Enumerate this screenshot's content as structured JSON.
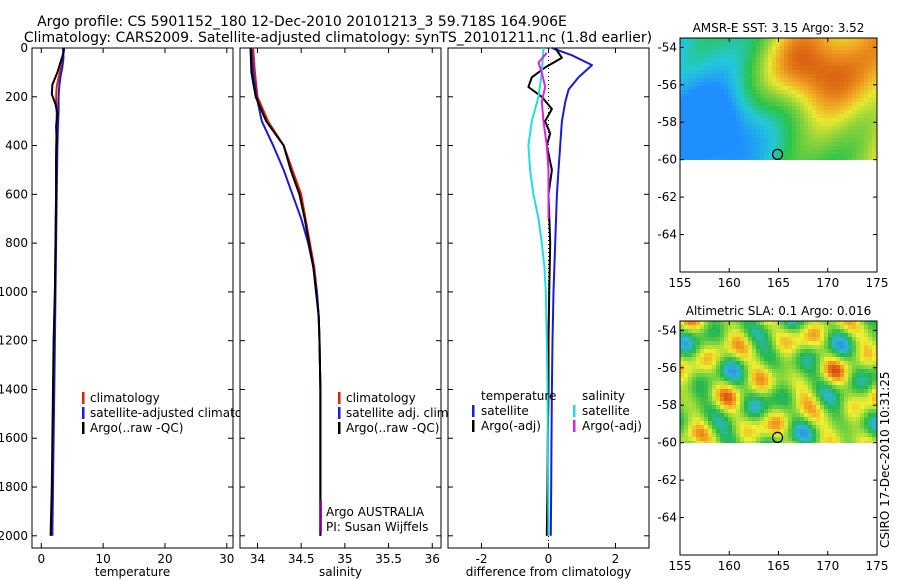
{
  "header": {
    "line1": "Argo profile: CS 5901152_180 12-Dec-2010 20101213_3 59.718S 164.906E",
    "line2": "Climatology: CARS2009. Satellite-adjusted climatology: synTS_20101211.nc (1.8d earlier)"
  },
  "colors": {
    "climatology": "#dd2200",
    "satellite": "#1a1ad8",
    "argo": "#000000",
    "sat_salinity": "#22dddd",
    "argo_adj": "#dd22dd",
    "owner": "#800080"
  },
  "depth_axis": {
    "ticks": [
      "0",
      "200",
      "400",
      "600",
      "800",
      "1000",
      "1200",
      "1400",
      "1600",
      "1800",
      "2000"
    ],
    "ylim": [
      2050,
      0
    ]
  },
  "chart_data": [
    {
      "type": "line",
      "xlabel": "temperature",
      "xlim": [
        -1.5,
        31
      ],
      "xticks": [
        0,
        10,
        20,
        30
      ],
      "xtick_labels": [
        "0",
        "10",
        "20",
        "30"
      ],
      "legend": [
        "climatology",
        "satellite-adjusted climatology",
        "Argo(..raw -QC)"
      ],
      "series": [
        {
          "name": "climatology",
          "color": "climatology",
          "points": [
            [
              3.6,
              0
            ],
            [
              3.5,
              40
            ],
            [
              3.2,
              80
            ],
            [
              2.8,
              120
            ],
            [
              2.5,
              160
            ],
            [
              2.4,
              200
            ],
            [
              2.5,
              260
            ],
            [
              2.5,
              320
            ],
            [
              2.4,
              400
            ],
            [
              2.4,
              600
            ],
            [
              2.3,
              800
            ],
            [
              2.2,
              1000
            ],
            [
              2.1,
              1200
            ],
            [
              2.0,
              1400
            ],
            [
              1.9,
              1600
            ],
            [
              1.8,
              1800
            ],
            [
              1.7,
              2000
            ]
          ]
        },
        {
          "name": "satellite-adjusted climatology",
          "color": "satellite",
          "points": [
            [
              3.5,
              0
            ],
            [
              3.6,
              40
            ],
            [
              3.4,
              80
            ],
            [
              3.1,
              120
            ],
            [
              2.9,
              160
            ],
            [
              2.8,
              200
            ],
            [
              2.8,
              260
            ],
            [
              2.7,
              320
            ],
            [
              2.6,
              400
            ],
            [
              2.5,
              600
            ],
            [
              2.4,
              800
            ],
            [
              2.3,
              1000
            ],
            [
              2.2,
              1200
            ],
            [
              2.1,
              1400
            ],
            [
              2.0,
              1600
            ],
            [
              1.9,
              1800
            ],
            [
              1.8,
              2000
            ]
          ]
        },
        {
          "name": "Argo(..raw -QC)",
          "color": "argo",
          "points": [
            [
              3.7,
              0
            ],
            [
              3.6,
              20
            ],
            [
              3.1,
              60
            ],
            [
              2.6,
              100
            ],
            [
              1.8,
              150
            ],
            [
              1.7,
              190
            ],
            [
              2.3,
              230
            ],
            [
              2.6,
              270
            ],
            [
              2.4,
              320
            ],
            [
              2.5,
              380
            ],
            [
              2.4,
              450
            ],
            [
              2.4,
              600
            ],
            [
              2.3,
              800
            ],
            [
              2.2,
              1000
            ],
            [
              2.0,
              1200
            ],
            [
              1.9,
              1400
            ],
            [
              1.8,
              1600
            ],
            [
              1.7,
              1800
            ],
            [
              1.5,
              2000
            ]
          ]
        }
      ]
    },
    {
      "type": "line",
      "xlabel": "salinity",
      "xlim": [
        33.8,
        36.1
      ],
      "xticks": [
        34,
        34.5,
        35,
        35.5,
        36
      ],
      "xtick_labels": [
        "34",
        "34.5",
        "35",
        "35.5",
        "36"
      ],
      "legend": [
        "climatology",
        "satellite adj. clim.",
        "Argo(..raw -QC)"
      ],
      "owner_lines": [
        "Argo AUSTRALIA",
        "PI: Susan Wijffels"
      ],
      "series": [
        {
          "name": "climatology",
          "color": "climatology",
          "points": [
            [
              33.95,
              0
            ],
            [
              33.97,
              100
            ],
            [
              34.0,
              200
            ],
            [
              34.12,
              300
            ],
            [
              34.3,
              400
            ],
            [
              34.4,
              500
            ],
            [
              34.5,
              600
            ],
            [
              34.55,
              700
            ],
            [
              34.6,
              800
            ],
            [
              34.65,
              900
            ],
            [
              34.68,
              1000
            ],
            [
              34.7,
              1100
            ],
            [
              34.71,
              1200
            ],
            [
              34.72,
              1400
            ],
            [
              34.72,
              1600
            ],
            [
              34.72,
              1800
            ],
            [
              34.72,
              2000
            ]
          ]
        },
        {
          "name": "satellite adj. clim.",
          "color": "satellite",
          "points": [
            [
              33.93,
              0
            ],
            [
              33.95,
              100
            ],
            [
              33.99,
              200
            ],
            [
              34.05,
              300
            ],
            [
              34.18,
              400
            ],
            [
              34.3,
              500
            ],
            [
              34.4,
              600
            ],
            [
              34.5,
              700
            ],
            [
              34.58,
              800
            ],
            [
              34.64,
              900
            ],
            [
              34.68,
              1000
            ],
            [
              34.7,
              1100
            ],
            [
              34.71,
              1200
            ],
            [
              34.72,
              1400
            ],
            [
              34.72,
              1600
            ],
            [
              34.72,
              1800
            ],
            [
              34.72,
              2000
            ]
          ]
        },
        {
          "name": "Argo(..raw -QC)",
          "color": "argo",
          "points": [
            [
              33.92,
              0
            ],
            [
              33.93,
              100
            ],
            [
              33.98,
              200
            ],
            [
              34.1,
              300
            ],
            [
              34.3,
              400
            ],
            [
              34.38,
              500
            ],
            [
              34.48,
              600
            ],
            [
              34.54,
              700
            ],
            [
              34.59,
              800
            ],
            [
              34.64,
              900
            ],
            [
              34.67,
              1000
            ],
            [
              34.7,
              1100
            ],
            [
              34.71,
              1200
            ],
            [
              34.72,
              1400
            ],
            [
              34.72,
              1600
            ],
            [
              34.72,
              1800
            ],
            [
              34.72,
              2000
            ]
          ]
        }
      ]
    },
    {
      "type": "line",
      "xlabel": "difference from climatology",
      "xlim": [
        -3,
        3
      ],
      "xticks": [
        -2,
        0,
        2
      ],
      "xtick_labels": [
        "-2",
        "0",
        "2"
      ],
      "legend_temperature": [
        "temperature",
        "satellite",
        "Argo(-adj)"
      ],
      "legend_salinity": [
        "salinity",
        "satellite",
        "Argo(-adj)"
      ],
      "series": [
        {
          "name": "temperature satellite",
          "color": "satellite",
          "points": [
            [
              0.1,
              0
            ],
            [
              0.7,
              30
            ],
            [
              1.3,
              70
            ],
            [
              0.9,
              120
            ],
            [
              0.6,
              170
            ],
            [
              0.5,
              220
            ],
            [
              0.4,
              300
            ],
            [
              0.35,
              400
            ],
            [
              0.3,
              500
            ],
            [
              0.25,
              600
            ],
            [
              0.2,
              800
            ],
            [
              0.15,
              1000
            ],
            [
              0.12,
              1200
            ],
            [
              0.1,
              1400
            ],
            [
              0.09,
              1600
            ],
            [
              0.08,
              1800
            ],
            [
              0.07,
              2000
            ]
          ]
        },
        {
          "name": "temperature Argo(-adj)",
          "color": "argo",
          "points": [
            [
              0.2,
              0
            ],
            [
              0.4,
              40
            ],
            [
              -0.1,
              80
            ],
            [
              -0.5,
              120
            ],
            [
              -0.6,
              160
            ],
            [
              -0.2,
              200
            ],
            [
              0.1,
              250
            ],
            [
              -0.1,
              300
            ],
            [
              0.05,
              350
            ],
            [
              -0.05,
              400
            ],
            [
              0.1,
              500
            ],
            [
              0.0,
              600
            ],
            [
              0.05,
              800
            ],
            [
              0.02,
              1000
            ],
            [
              0.0,
              1200
            ],
            [
              0.0,
              1400
            ],
            [
              -0.02,
              1600
            ],
            [
              -0.03,
              1800
            ],
            [
              -0.05,
              2000
            ]
          ]
        },
        {
          "name": "salinity satellite",
          "color": "sat_salinity",
          "points": [
            [
              -0.15,
              0
            ],
            [
              -0.2,
              100
            ],
            [
              -0.3,
              200
            ],
            [
              -0.5,
              300
            ],
            [
              -0.6,
              400
            ],
            [
              -0.55,
              500
            ],
            [
              -0.45,
              600
            ],
            [
              -0.3,
              700
            ],
            [
              -0.2,
              800
            ],
            [
              -0.12,
              900
            ],
            [
              -0.08,
              1000
            ],
            [
              -0.05,
              1200
            ],
            [
              -0.03,
              1400
            ],
            [
              -0.02,
              1600
            ],
            [
              -0.01,
              1800
            ],
            [
              0.0,
              2000
            ]
          ]
        },
        {
          "name": "salinity Argo(-adj)",
          "color": "argo_adj",
          "points": [
            [
              -0.05,
              20
            ],
            [
              -0.3,
              60
            ],
            [
              -0.2,
              100
            ],
            [
              -0.1,
              160
            ],
            [
              -0.2,
              220
            ],
            [
              -0.15,
              300
            ],
            [
              -0.05,
              400
            ],
            [
              0.0,
              500
            ],
            [
              0.0,
              600
            ],
            [
              0.0,
              700
            ]
          ]
        }
      ]
    }
  ],
  "maps": [
    {
      "title": "AMSR-E SST: 3.15 Argo: 3.52",
      "xticks": [
        "155",
        "160",
        "165",
        "170",
        "175"
      ],
      "yticks": [
        "-54",
        "-56",
        "-58",
        "-60",
        "-62",
        "-64"
      ],
      "lon_range": [
        155,
        175
      ],
      "lat_range": [
        -53.5,
        -66
      ],
      "data_lat_min": -60,
      "marker": {
        "lon": 164.906,
        "lat": -59.718
      }
    },
    {
      "title": "Altimetric SLA: 0.1 Argo: 0.016",
      "xticks": [
        "155",
        "160",
        "165",
        "170",
        "175"
      ],
      "yticks": [
        "-54",
        "-56",
        "-58",
        "-60",
        "-62",
        "-64"
      ],
      "lon_range": [
        155,
        175
      ],
      "lat_range": [
        -53.5,
        -66
      ],
      "data_lat_min": -60,
      "marker": {
        "lon": 164.906,
        "lat": -59.718
      }
    }
  ],
  "footer": {
    "credit": "CSIRO 17-Dec-2010 10:31:25"
  }
}
